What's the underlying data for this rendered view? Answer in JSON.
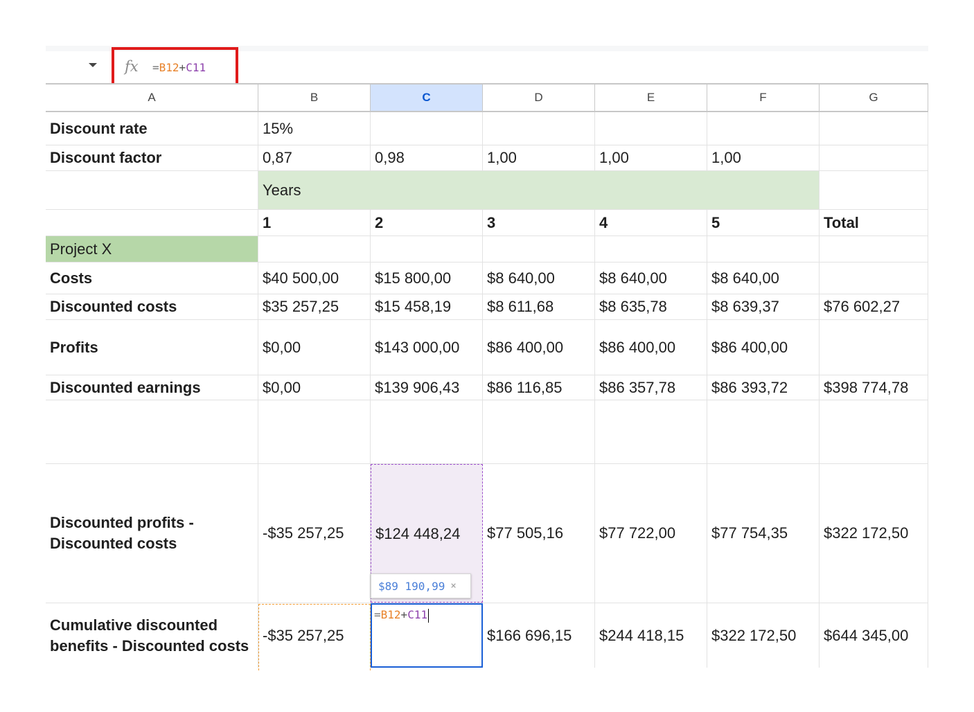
{
  "formula_bar": {
    "fx_icon": "fx",
    "formula": {
      "eq": "=",
      "ref1": "B12",
      "plus": "+",
      "ref2": "C11"
    }
  },
  "columns": [
    "A",
    "B",
    "C",
    "D",
    "E",
    "F",
    "G"
  ],
  "active_column": "C",
  "rows": {
    "discount_rate": {
      "label": "Discount rate",
      "b": "15%"
    },
    "discount_factor": {
      "label": "Discount factor",
      "b": "0,87",
      "c": "0,98",
      "d": "1,00",
      "e": "1,00",
      "f": "1,00"
    },
    "years": {
      "label": "Years"
    },
    "year_numbers": {
      "b": "1",
      "c": "2",
      "d": "3",
      "e": "4",
      "f": "5",
      "g": "Total"
    },
    "project": {
      "label": "Project X"
    },
    "costs": {
      "label": "Costs",
      "b": "$40 500,00",
      "c": "$15 800,00",
      "d": "$8 640,00",
      "e": "$8 640,00",
      "f": "$8 640,00"
    },
    "discounted_costs": {
      "label": "Discounted costs",
      "b": "$35 257,25",
      "c": "$15 458,19",
      "d": "$8 611,68",
      "e": "$8 635,78",
      "f": "$8 639,37",
      "g": "$76 602,27"
    },
    "profits": {
      "label": "Profits",
      "b": "$0,00",
      "c": "$143 000,00",
      "d": "$86 400,00",
      "e": "$86 400,00",
      "f": "$86 400,00"
    },
    "discounted_earnings": {
      "label": "Discounted earnings",
      "b": "$0,00",
      "c": "$139 906,43",
      "d": "$86 116,85",
      "e": "$86 357,78",
      "f": "$86 393,72",
      "g": "$398 774,78"
    },
    "disc_profits_minus_costs": {
      "label": "Discounted profits - Discounted costs",
      "b": "-$35 257,25",
      "c": "$124 448,24",
      "d": "$77 505,16",
      "e": "$77 722,00",
      "f": "$77 754,35",
      "g": "$322 172,50"
    },
    "cumulative": {
      "label": "Cumulative discounted benefits - Discounted costs",
      "b": "-$35 257,25",
      "d": "$166 696,15",
      "e": "$244 418,15",
      "f": "$322 172,50",
      "g": "$644 345,00"
    }
  },
  "editing_cell": {
    "eq": "=",
    "ref1": "B12",
    "plus": "+",
    "ref2": "C11"
  },
  "preview_tooltip": {
    "value": "$89 190,99",
    "close": "×"
  }
}
